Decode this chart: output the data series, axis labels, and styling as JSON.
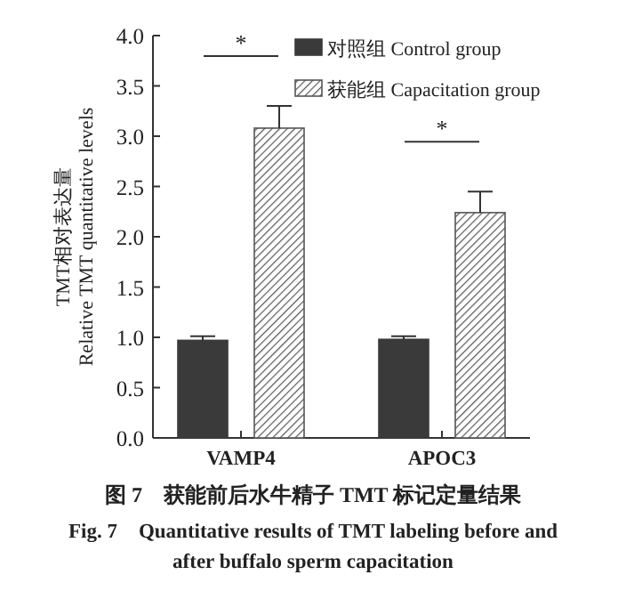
{
  "chart_data": {
    "type": "bar",
    "title": "图 7　获能前后水牛精子 TMT 标记定量结果",
    "subtitle": "Fig. 7　Quantitative results of TMT labeling before and after buffalo sperm capacitation",
    "ylabel": "TMT相对表达量\nRelative TMT quantitative levels",
    "categories": [
      "VAMP4",
      "APOC3"
    ],
    "series": [
      {
        "name": "对照组 Control group",
        "color": "#3a3a3a",
        "values": [
          0.97,
          0.98
        ],
        "errors": [
          0.04,
          0.03
        ]
      },
      {
        "name": "获能组 Capacitation group",
        "color": "#555555",
        "values": [
          3.08,
          2.24
        ],
        "errors": [
          0.22,
          0.21
        ]
      }
    ],
    "ylim": [
      0,
      4
    ],
    "yticks": [
      {
        "value": 0,
        "label": "0.0"
      },
      0.5,
      {
        "value": 1,
        "label": "1.0"
      },
      1.5,
      {
        "value": 2,
        "label": "2.0"
      },
      2.5,
      {
        "value": 3,
        "label": "3.0"
      },
      3.5,
      {
        "value": 4,
        "label": "4.0"
      }
    ],
    "annotations": [
      "*",
      "*"
    ],
    "legend": "top right",
    "grid": false
  }
}
